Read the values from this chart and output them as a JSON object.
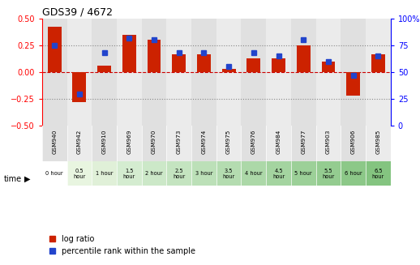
{
  "title": "GDS39 / 4672",
  "samples": [
    "GSM940",
    "GSM942",
    "GSM910",
    "GSM969",
    "GSM970",
    "GSM973",
    "GSM974",
    "GSM975",
    "GSM976",
    "GSM984",
    "GSM977",
    "GSM903",
    "GSM906",
    "GSM985"
  ],
  "time_labels": [
    "0 hour",
    "0.5\nhour",
    "1 hour",
    "1.5\nhour",
    "2 hour",
    "2.5\nhour",
    "3 hour",
    "3.5\nhour",
    "4 hour",
    "4.5\nhour",
    "5 hour",
    "5.5\nhour",
    "6 hour",
    "6.5\nhour"
  ],
  "log_ratio": [
    0.42,
    -0.28,
    0.06,
    0.35,
    0.3,
    0.17,
    0.17,
    0.03,
    0.13,
    0.13,
    0.25,
    0.1,
    -0.22,
    0.17
  ],
  "percentile": [
    75,
    30,
    68,
    82,
    80,
    68,
    68,
    55,
    68,
    65,
    80,
    60,
    47,
    65
  ],
  "bar_color": "#cc2200",
  "dot_color": "#2244cc",
  "bg_colors": [
    "#e0e0e0",
    "#ebebeb"
  ],
  "ylim": [
    -0.5,
    0.5
  ],
  "y2lim": [
    0,
    100
  ],
  "yticks": [
    -0.5,
    -0.25,
    0,
    0.25,
    0.5
  ],
  "y2ticks": [
    0,
    25,
    50,
    75,
    100
  ],
  "hlines": [
    -0.25,
    0,
    0.25
  ],
  "hline_colors": [
    "#888888",
    "#cc0000",
    "#888888"
  ],
  "hline_styles": [
    "dotted",
    "dashed",
    "dotted"
  ],
  "time_bg": [
    "#ffffff",
    "#e8f5e0",
    "#e0f0d8",
    "#d4ecd0",
    "#cce8c8",
    "#c4e4c0",
    "#bce0b8",
    "#b4dcb0",
    "#acd8a8",
    "#a4d4a0",
    "#9cd098",
    "#94cc90",
    "#8cc888",
    "#84c480"
  ]
}
